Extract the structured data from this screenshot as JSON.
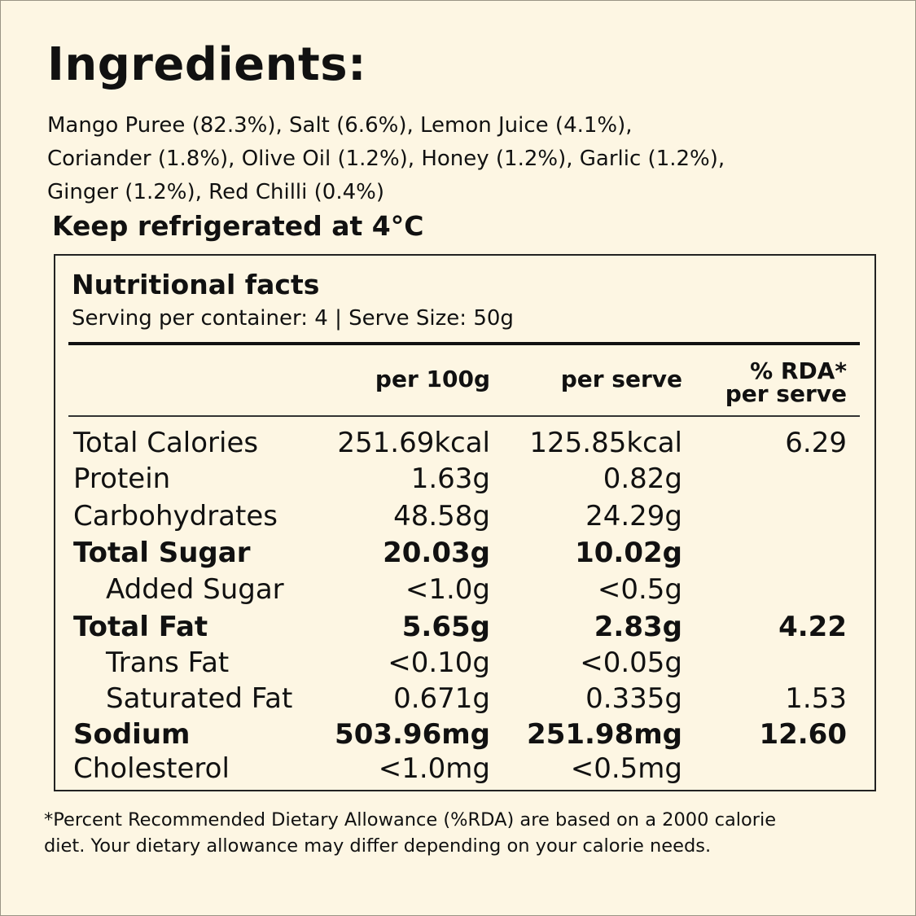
{
  "heading": "Ingredients:",
  "ingredients_lines": [
    "Mango Puree (82.3%), Salt (6.6%), Lemon Juice (4.1%),",
    "Coriander (1.8%), Olive Oil (1.2%), Honey (1.2%), Garlic (1.2%),",
    "Ginger (1.2%), Red Chilli (0.4%)"
  ],
  "storage": "Keep refrigerated at 4°C",
  "nutrition": {
    "title": "Nutritional facts",
    "serving": "Serving per container: 4 | Serve Size: 50g",
    "headers": {
      "per100": "per 100g",
      "perserve": "per serve",
      "rda_line1": "% RDA*",
      "rda_line2": "per serve"
    },
    "rows": [
      {
        "name": "Total Calories",
        "per100": "251.69kcal",
        "perserve": "125.85kcal",
        "rda": "6.29",
        "bold": false,
        "indent": false
      },
      {
        "name": "Protein",
        "per100": "1.63g",
        "perserve": "0.82g",
        "rda": "",
        "bold": false,
        "indent": false
      },
      {
        "name": "Carbohydrates",
        "per100": "48.58g",
        "perserve": "24.29g",
        "rda": "",
        "bold": false,
        "indent": false
      },
      {
        "name": "Total Sugar",
        "per100": "20.03g",
        "perserve": "10.02g",
        "rda": "",
        "bold": true,
        "indent": false
      },
      {
        "name": "Added Sugar",
        "per100": "<1.0g",
        "perserve": "<0.5g",
        "rda": "",
        "bold": false,
        "indent": true
      },
      {
        "name": "Total Fat",
        "per100": "5.65g",
        "perserve": "2.83g",
        "rda": "4.22",
        "bold": true,
        "indent": false
      },
      {
        "name": "Trans Fat",
        "per100": "<0.10g",
        "perserve": "<0.05g",
        "rda": "",
        "bold": false,
        "indent": true
      },
      {
        "name": "Saturated Fat",
        "per100": "0.671g",
        "perserve": "0.335g",
        "rda": "1.53",
        "bold": false,
        "indent": true
      },
      {
        "name": "Sodium",
        "per100": "503.96mg",
        "perserve": "251.98mg",
        "rda": "12.60",
        "bold": true,
        "indent": false
      },
      {
        "name": "Cholesterol",
        "per100": "<1.0mg",
        "perserve": "<0.5mg",
        "rda": "",
        "bold": false,
        "indent": false
      }
    ]
  },
  "footnote_lines": [
    "*Percent Recommended Dietary Allowance (%RDA) are based on a 2000 calorie",
    "diet. Your dietary allowance may differ depending on your calorie needs."
  ]
}
